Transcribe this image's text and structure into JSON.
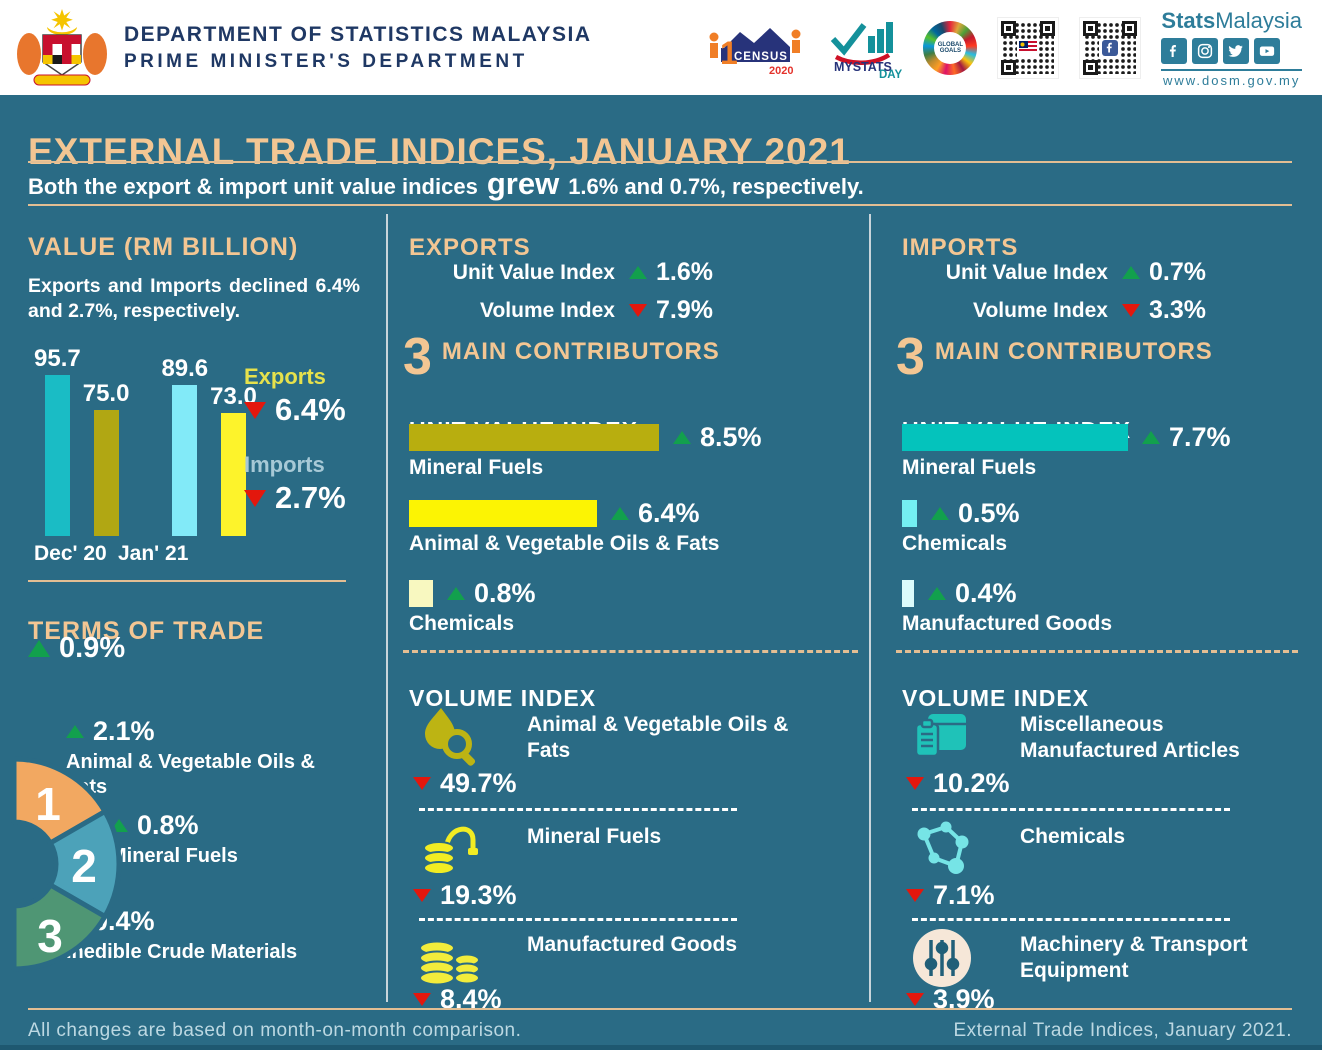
{
  "header": {
    "dept_line1": "DEPARTMENT OF STATISTICS MALAYSIA",
    "dept_line2": "PRIME MINISTER'S DEPARTMENT",
    "logos": {
      "census_label": "CENSUS",
      "census_year": "2020",
      "mystats_label": "MYSTATS",
      "mystats_sub": "DAY",
      "sdg_label": "GLOBAL GOALS",
      "brand_bold": "Stats",
      "brand_rest": "Malaysia",
      "website": "www.dosm.gov.my"
    }
  },
  "title": "EXTERNAL TRADE INDICES, JANUARY 2021",
  "subtitle": {
    "pre": "Both the export & import unit value indices",
    "emph": "grew",
    "post": "1.6% and 0.7%, respectively."
  },
  "value_section": {
    "heading": "VALUE (RM BILLION)",
    "description": "Exports and Imports declined 6.4% and 2.7%, respectively.",
    "exports": {
      "label": "Exports",
      "text": "6.4%",
      "direction": "down"
    },
    "imports": {
      "label": "Imports",
      "text": "2.7%",
      "direction": "down"
    }
  },
  "terms_of_trade": {
    "heading": "TERMS OF TRADE",
    "change": {
      "text": "0.9%",
      "direction": "up"
    },
    "contributors": [
      {
        "rank": "1",
        "text": "2.1%",
        "direction": "up",
        "label": "Animal & Vegetable Oils & Fats",
        "color": "#F2A861"
      },
      {
        "rank": "2",
        "text": "0.8%",
        "direction": "up",
        "label": "Mineral Fuels",
        "color": "#4CA2B9"
      },
      {
        "rank": "3",
        "text": "0.4%",
        "direction": "up",
        "label": "Inedible Crude Materials",
        "color": "#4F9674"
      }
    ]
  },
  "exports_section": {
    "heading": "EXPORTS",
    "rows": [
      {
        "label": "Unit Value Index",
        "text": "1.6%",
        "direction": "up"
      },
      {
        "label": "Volume Index",
        "text": "7.9%",
        "direction": "down"
      }
    ],
    "contributors": {
      "number": "3",
      "text": "MAIN CONTRIBUTORS"
    },
    "unit_value_heading": "UNIT VALUE INDEX",
    "volume_heading": "VOLUME INDEX",
    "volume_items": [
      {
        "label": "Animal & Vegetable Oils & Fats",
        "text": "49.7%",
        "direction": "down",
        "icon": "oils-fats-icon"
      },
      {
        "label": "Mineral Fuels",
        "text": "19.3%",
        "direction": "down",
        "icon": "mineral-fuels-icon"
      },
      {
        "label": "Manufactured Goods",
        "text": "8.4%",
        "direction": "down",
        "icon": "manufactured-goods-icon"
      }
    ]
  },
  "imports_section": {
    "heading": "IMPORTS",
    "rows": [
      {
        "label": "Unit Value Index",
        "text": "0.7%",
        "direction": "up"
      },
      {
        "label": "Volume Index",
        "text": "3.3%",
        "direction": "down"
      }
    ],
    "contributors": {
      "number": "3",
      "text": "MAIN CONTRIBUTORS"
    },
    "unit_value_heading": "UNIT VALUE INDEX",
    "volume_heading": "VOLUME INDEX",
    "volume_items": [
      {
        "label": "Miscellaneous Manufactured Articles",
        "text": "10.2%",
        "direction": "down",
        "icon": "misc-manufactured-icon"
      },
      {
        "label": "Chemicals",
        "text": "7.1%",
        "direction": "down",
        "icon": "chemicals-icon"
      },
      {
        "label": "Machinery & Transport Equipment",
        "text": "3.9%",
        "direction": "down",
        "icon": "machinery-icon"
      }
    ]
  },
  "footer": {
    "left": "All changes are based on month-on-month comparison.",
    "right": "External Trade Indices, January 2021."
  },
  "chart_data": [
    {
      "id": "trade-value-bars",
      "type": "bar",
      "title": "VALUE (RM BILLION)",
      "categories": [
        "Dec' 20",
        "Jan' 21"
      ],
      "series": [
        {
          "name": "Exports",
          "values": [
            95.7,
            89.6
          ],
          "labels": [
            "95.7",
            "89.6"
          ],
          "colors": [
            "#1ABCC5",
            "#82EAF8"
          ]
        },
        {
          "name": "Imports",
          "values": [
            75.0,
            73.0
          ],
          "labels": [
            "75.0",
            "73.0"
          ],
          "colors": [
            "#B1A713",
            "#FDF32B"
          ]
        }
      ],
      "ylim": [
        0,
        100
      ],
      "unit": "RM billion",
      "grid": false,
      "legend": "none"
    },
    {
      "id": "exports-unit-value-contributors",
      "type": "bar",
      "orientation": "horizontal",
      "unit": "% month-on-month",
      "items": [
        {
          "label": "Mineral Fuels",
          "value": 8.5,
          "text": "8.5%",
          "direction": "up",
          "color": "#B8AE0F"
        },
        {
          "label": "Animal & Vegetable Oils & Fats",
          "value": 6.4,
          "text": "6.4%",
          "direction": "up",
          "color": "#FCF403"
        },
        {
          "label": "Chemicals",
          "value": 0.8,
          "text": "0.8%",
          "direction": "up",
          "color": "#F8F8C0"
        }
      ]
    },
    {
      "id": "imports-unit-value-contributors",
      "type": "bar",
      "orientation": "horizontal",
      "unit": "% month-on-month",
      "items": [
        {
          "label": "Mineral Fuels",
          "value": 7.7,
          "text": "7.7%",
          "direction": "up",
          "color": "#04C3BC"
        },
        {
          "label": "Chemicals",
          "value": 0.5,
          "text": "0.5%",
          "direction": "up",
          "color": "#74EFF2"
        },
        {
          "label": "Manufactured Goods",
          "value": 0.4,
          "text": "0.4%",
          "direction": "up",
          "color": "#DCFBFB"
        }
      ]
    }
  ]
}
